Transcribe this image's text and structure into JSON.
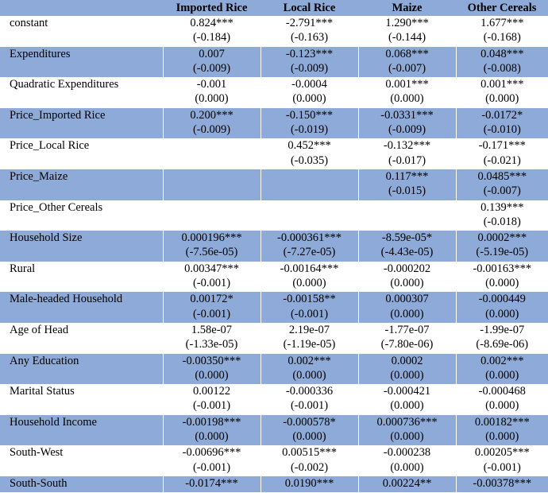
{
  "table": {
    "columns": [
      "",
      "Imported Rice",
      "Local Rice",
      "Maize",
      "Other Cereals"
    ],
    "rows": [
      {
        "label": "constant",
        "shaded": false,
        "cells": [
          [
            "0.824***",
            "(-0.184)"
          ],
          [
            "-2.791***",
            "(-0.163)"
          ],
          [
            "1.290***",
            "(-0.144)"
          ],
          [
            "1.677***",
            "(-0.168)"
          ]
        ]
      },
      {
        "label": "Expenditures",
        "shaded": true,
        "cells": [
          [
            "0.007",
            "(-0.009)"
          ],
          [
            "-0.123***",
            "(-0.009)"
          ],
          [
            "0.068***",
            "(-0.007)"
          ],
          [
            "0.048***",
            "(-0.008)"
          ]
        ]
      },
      {
        "label": "Quadratic Expenditures",
        "shaded": false,
        "cells": [
          [
            "-0.001",
            "(0.000)"
          ],
          [
            "-0.0004",
            "(0.000)"
          ],
          [
            "0.001***",
            "(0.000)"
          ],
          [
            "0.001***",
            "(0.000)"
          ]
        ]
      },
      {
        "label": "Price_Imported Rice",
        "shaded": true,
        "cells": [
          [
            "0.200***",
            "(-0.009)"
          ],
          [
            "-0.150***",
            "(-0.019)"
          ],
          [
            "-0.0331***",
            "(-0.009)"
          ],
          [
            "-0.0172*",
            "(-0.010)"
          ]
        ]
      },
      {
        "label": "Price_Local Rice",
        "shaded": false,
        "cells": [
          [
            "",
            ""
          ],
          [
            "0.452***",
            "(-0.035)"
          ],
          [
            "-0.132***",
            "(-0.017)"
          ],
          [
            "-0.171***",
            "(-0.021)"
          ]
        ]
      },
      {
        "label": "Price_Maize",
        "shaded": true,
        "cells": [
          [
            "",
            ""
          ],
          [
            "",
            ""
          ],
          [
            "0.117***",
            "(-0.015)"
          ],
          [
            "0.0485***",
            "(-0.007)"
          ]
        ]
      },
      {
        "label": "Price_Other Cereals",
        "shaded": false,
        "cells": [
          [
            "",
            ""
          ],
          [
            "",
            ""
          ],
          [
            "",
            ""
          ],
          [
            "0.139***",
            "(-0.018)"
          ]
        ]
      },
      {
        "label": "Household Size",
        "shaded": true,
        "cells": [
          [
            "0.000196***",
            "(-7.56e-05)"
          ],
          [
            "-0.000361***",
            "(-7.27e-05)"
          ],
          [
            "-8.59e-05*",
            "(-4.43e-05)"
          ],
          [
            "0.0002***",
            "(-5.19e-05)"
          ]
        ]
      },
      {
        "label": "Rural",
        "shaded": false,
        "cells": [
          [
            "0.00347***",
            "(-0.001)"
          ],
          [
            "-0.00164***",
            "(0.000)"
          ],
          [
            "-0.000202",
            "(0.000)"
          ],
          [
            "-0.00163***",
            "(0.000)"
          ]
        ]
      },
      {
        "label": "Male-headed Household",
        "shaded": true,
        "cells": [
          [
            "0.00172*",
            "(-0.001)"
          ],
          [
            "-0.00158**",
            "(-0.001)"
          ],
          [
            "0.000307",
            "(0.000)"
          ],
          [
            "-0.000449",
            "(0.000)"
          ]
        ]
      },
      {
        "label": "Age of Head",
        "shaded": false,
        "cells": [
          [
            "1.58e-07",
            "(-1.33e-05)"
          ],
          [
            "2.19e-07",
            "(-1.19e-05)"
          ],
          [
            "-1.77e-07",
            "(-7.80e-06)"
          ],
          [
            "-1.99e-07",
            "(-8.69e-06)"
          ]
        ]
      },
      {
        "label": "Any Education",
        "shaded": true,
        "cells": [
          [
            "-0.00350***",
            "(0.000)"
          ],
          [
            "0.002***",
            "(0.000)"
          ],
          [
            "0.0002",
            "(0.000)"
          ],
          [
            "0.002***",
            "(0.000)"
          ]
        ]
      },
      {
        "label": "Marital Status",
        "shaded": false,
        "cells": [
          [
            "0.00122",
            "(-0.001)"
          ],
          [
            "-0.000336",
            "(-0.001)"
          ],
          [
            "-0.000421",
            "(0.000)"
          ],
          [
            "-0.000468",
            "(0.000)"
          ]
        ]
      },
      {
        "label": "Household Income",
        "shaded": true,
        "cells": [
          [
            "-0.00198***",
            "(0.000)"
          ],
          [
            "-0.000578*",
            "(0.000)"
          ],
          [
            "0.000736***",
            "(0.000)"
          ],
          [
            "0.00182***",
            "(0.000)"
          ]
        ]
      },
      {
        "label": "South-West",
        "shaded": false,
        "cells": [
          [
            "-0.00696***",
            "(-0.001)"
          ],
          [
            "0.00515***",
            "(-0.002)"
          ],
          [
            "-0.000238",
            "(0.000)"
          ],
          [
            "0.00205***",
            "(-0.001)"
          ]
        ]
      },
      {
        "label": "South-South",
        "shaded": true,
        "cells": [
          [
            "-0.0174***",
            ""
          ],
          [
            "0.0190***",
            ""
          ],
          [
            "0.00224**",
            ""
          ],
          [
            "-0.00378***",
            ""
          ]
        ]
      }
    ]
  }
}
